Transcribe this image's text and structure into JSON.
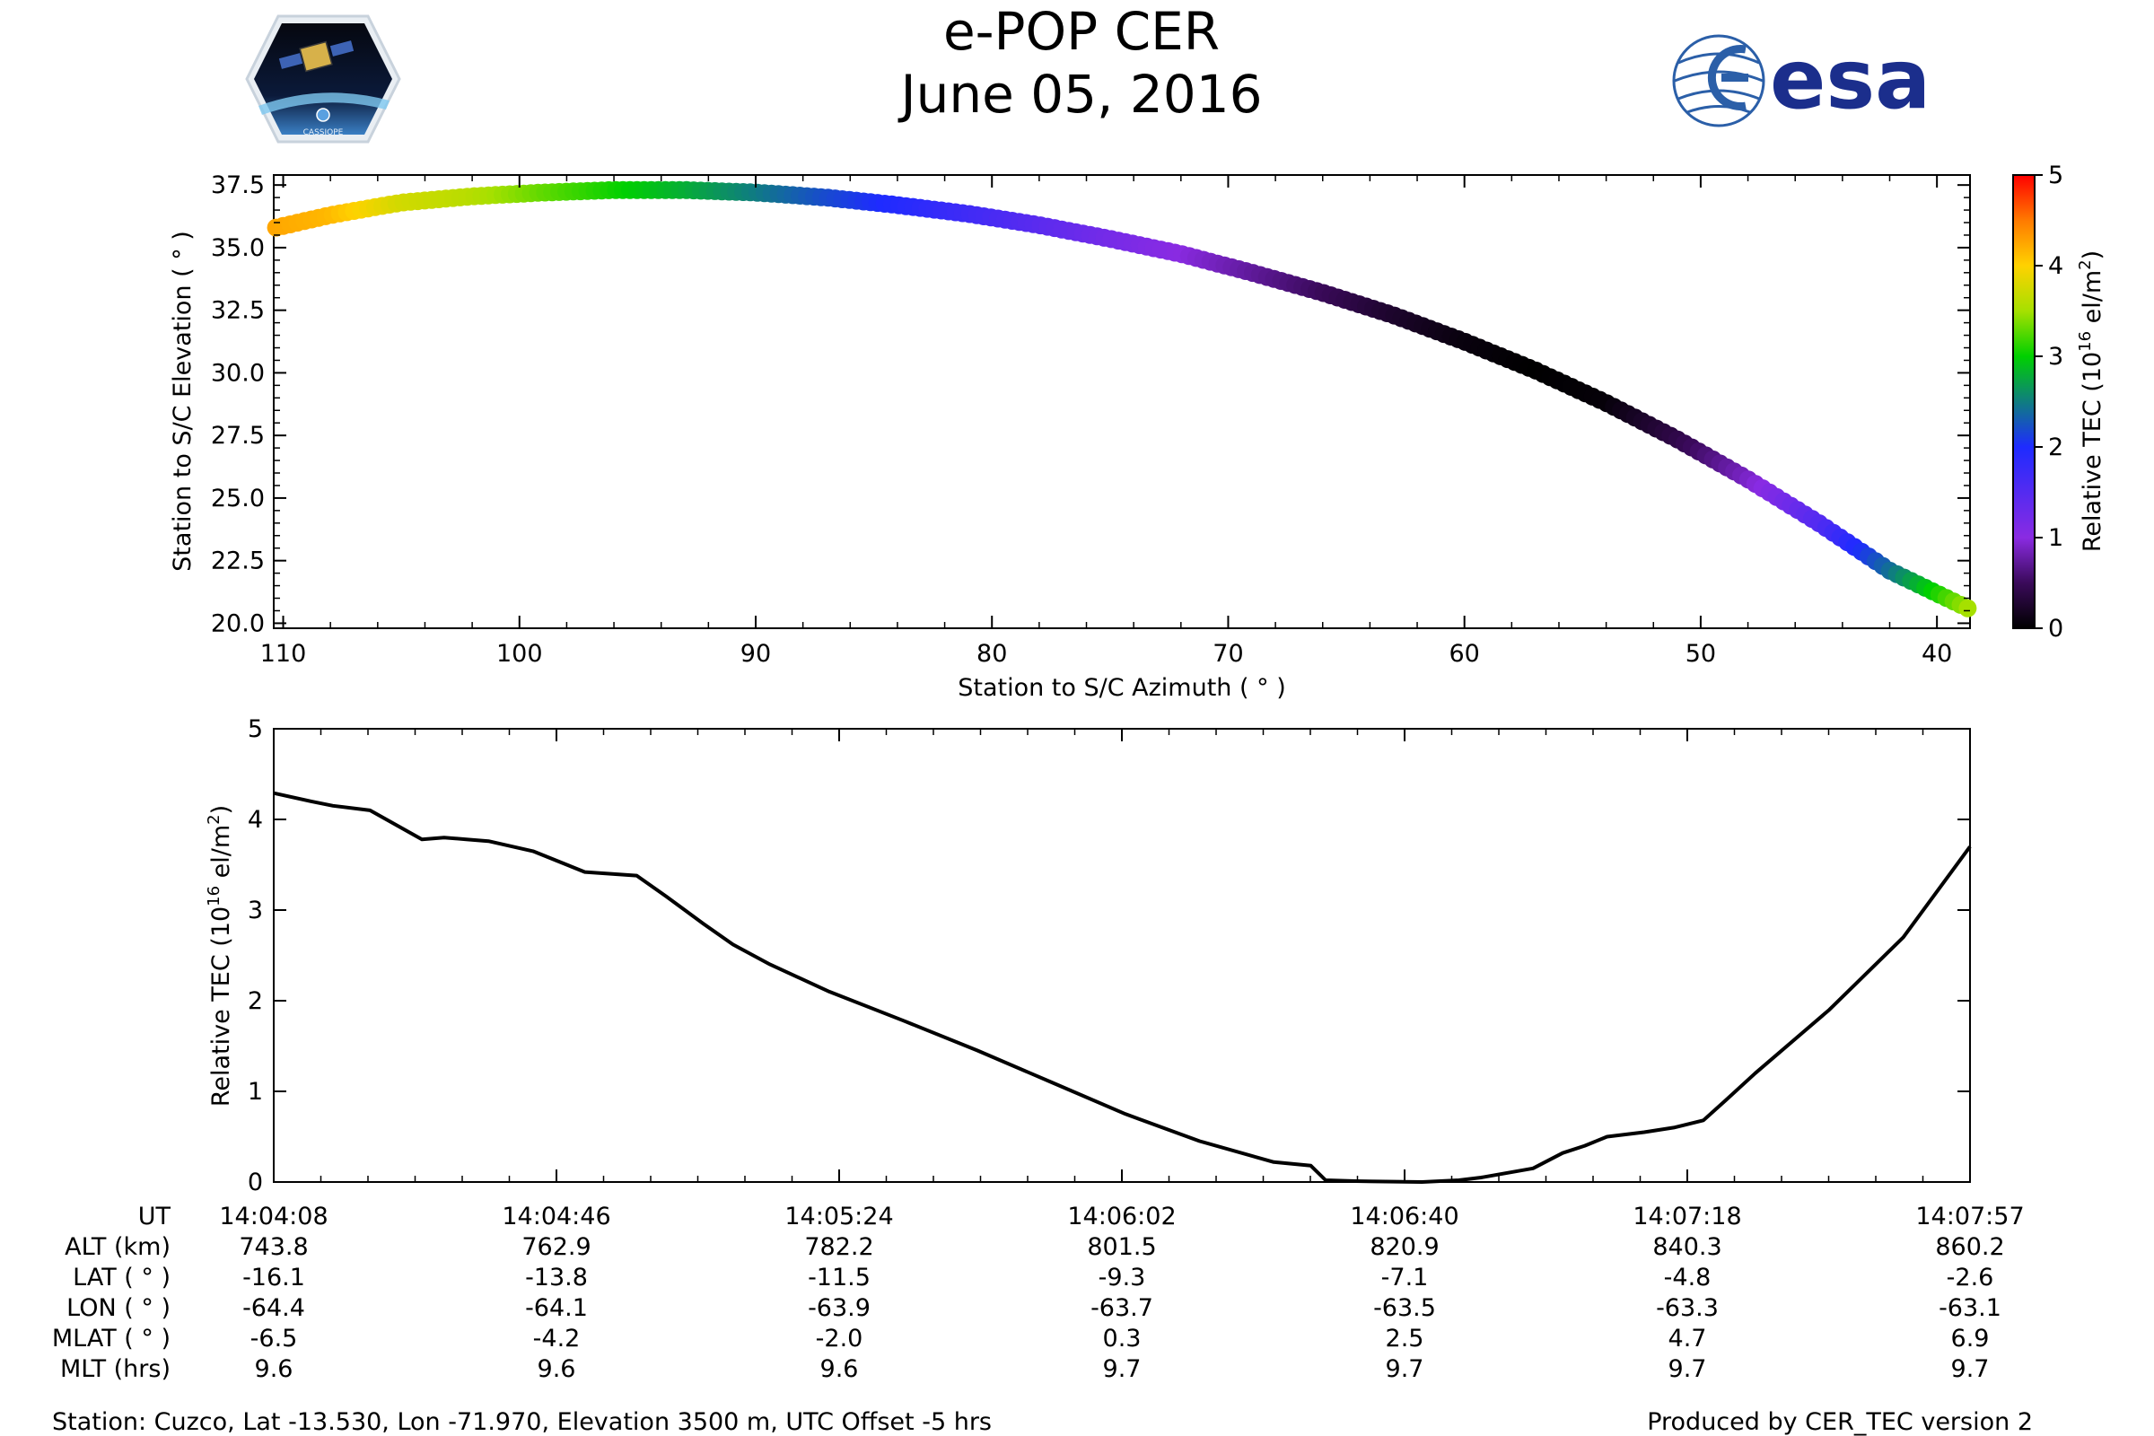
{
  "header": {
    "title": "e-POP CER",
    "date": "June 05, 2016",
    "left_logo_caption": "CASSIOPE",
    "right_logo_text": "esa",
    "colors": {
      "esa_blue": "#1b2e8c",
      "logo_blue": "#2b5fa8"
    }
  },
  "footer": {
    "station": "Station: Cuzco, Lat -13.530, Lon -71.970, Elevation 3500 m, UTC Offset -5 hrs",
    "produced": "Produced by CER_TEC version 2"
  },
  "chart_data": [
    {
      "type": "scatter",
      "name": "elevation-vs-azimuth",
      "xlabel": "Station to S/C Azimuth ( ° )",
      "ylabel": "Station to S/C Elevation ( ° )",
      "xlim": [
        110.4,
        38.6
      ],
      "ylim": [
        19.8,
        37.9
      ],
      "xticks": [
        110,
        100,
        90,
        80,
        70,
        60,
        50,
        40
      ],
      "yticks": [
        20.0,
        22.5,
        25.0,
        27.5,
        30.0,
        32.5,
        35.0,
        37.5
      ],
      "colorbar": {
        "label_prefix": "Relative TEC (10",
        "label_exp": "16",
        "label_suffix": " el/m",
        "label_sq": "2",
        "label_end": ")",
        "range": [
          0,
          5
        ],
        "ticks": [
          0,
          1,
          2,
          3,
          4,
          5
        ]
      },
      "azimuth": [
        110.3,
        108.0,
        105.0,
        102.0,
        99.0,
        96.0,
        93.0,
        90.0,
        87.0,
        84.0,
        81.0,
        78.0,
        75.0,
        72.0,
        69.0,
        66.0,
        63.0,
        60.0,
        57.0,
        54.0,
        51.0,
        48.0,
        45.0,
        42.0,
        38.7
      ],
      "elevation": [
        35.8,
        36.3,
        36.8,
        37.05,
        37.2,
        37.3,
        37.3,
        37.2,
        37.0,
        36.7,
        36.35,
        35.9,
        35.35,
        34.75,
        34.0,
        33.2,
        32.3,
        31.25,
        30.1,
        28.8,
        27.35,
        25.75,
        24.0,
        22.1,
        20.6
      ],
      "tec": [
        4.25,
        4.15,
        3.75,
        3.6,
        3.3,
        3.05,
        2.8,
        2.5,
        2.2,
        1.95,
        1.7,
        1.45,
        1.2,
        1.0,
        0.75,
        0.5,
        0.25,
        0.08,
        0.0,
        0.05,
        0.4,
        0.9,
        1.5,
        2.4,
        3.5
      ]
    },
    {
      "type": "line",
      "name": "tec-vs-time",
      "ylabel_prefix": "Relative TEC (10",
      "ylabel_exp": "16",
      "ylabel_suffix": " el/m",
      "ylabel_sq": "2",
      "ylabel_end": ")",
      "ylim": [
        0,
        5
      ],
      "yticks": [
        0,
        1,
        2,
        3,
        4,
        5
      ],
      "t_range_seconds": [
        0,
        229
      ],
      "t_seconds": [
        0,
        5,
        8,
        13,
        20,
        23,
        26,
        29,
        35,
        42,
        49,
        53,
        58,
        62,
        67,
        75,
        85,
        95,
        105,
        115,
        125,
        135,
        140,
        142,
        146,
        155,
        160,
        163,
        170,
        174,
        177,
        180,
        185,
        189,
        193,
        196,
        200,
        210,
        220,
        229
      ],
      "tec": [
        4.29,
        4.2,
        4.15,
        4.1,
        3.78,
        3.8,
        3.78,
        3.76,
        3.65,
        3.42,
        3.38,
        3.15,
        2.85,
        2.62,
        2.4,
        2.1,
        1.78,
        1.45,
        1.1,
        0.75,
        0.45,
        0.22,
        0.18,
        0.02,
        0.01,
        0.0,
        0.02,
        0.05,
        0.15,
        0.32,
        0.4,
        0.5,
        0.55,
        0.6,
        0.68,
        0.9,
        1.2,
        1.9,
        2.7,
        3.7
      ]
    }
  ],
  "ephemeris": {
    "row_labels": [
      "UT",
      "ALT (km)",
      "LAT ( ° )",
      "LON ( ° )",
      "MLAT ( ° )",
      "MLT (hrs)"
    ],
    "columns": [
      [
        "14:04:08",
        "743.8",
        "-16.1",
        "-64.4",
        "-6.5",
        "9.6"
      ],
      [
        "14:04:46",
        "762.9",
        "-13.8",
        "-64.1",
        "-4.2",
        "9.6"
      ],
      [
        "14:05:24",
        "782.2",
        "-11.5",
        "-63.9",
        "-2.0",
        "9.6"
      ],
      [
        "14:06:02",
        "801.5",
        "-9.3",
        "-63.7",
        "0.3",
        "9.7"
      ],
      [
        "14:06:40",
        "820.9",
        "-7.1",
        "-63.5",
        "2.5",
        "9.7"
      ],
      [
        "14:07:18",
        "840.3",
        "-4.8",
        "-63.3",
        "4.7",
        "9.7"
      ],
      [
        "14:07:57",
        "860.2",
        "-2.6",
        "-63.1",
        "6.9",
        "9.7"
      ]
    ]
  }
}
